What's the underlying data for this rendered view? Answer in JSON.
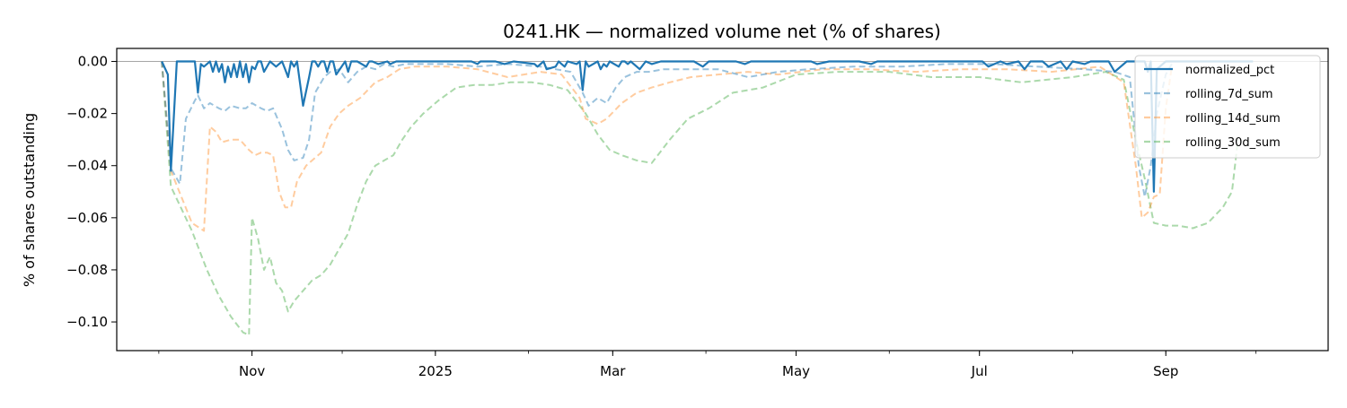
{
  "chart_data": {
    "type": "line",
    "title": "0241.HK — normalized volume net (% of shares)",
    "xlabel": "",
    "ylabel": "% of shares outstanding",
    "ylim": [
      -0.111,
      0.005
    ],
    "xlim": [
      "2024-09-17",
      "2025-10-25"
    ],
    "yticks": [
      0.0,
      -0.02,
      -0.04,
      -0.06,
      -0.08,
      -0.1
    ],
    "ytick_labels": [
      "0.00",
      "−0.02",
      "−0.04",
      "−0.06",
      "−0.08",
      "−0.10"
    ],
    "xticks": [
      "2024-11-01",
      "2025-01-01",
      "2025-03-01",
      "2025-05-01",
      "2025-07-01",
      "2025-09-01"
    ],
    "xtick_labels": [
      "Nov",
      "2025",
      "Mar",
      "May",
      "Jul",
      "Sep"
    ],
    "zero_line": true,
    "grid": false,
    "legend_position": "top-right",
    "series": [
      {
        "name": "normalized_pct",
        "color": "#1f77b4",
        "style": "solid",
        "opacity": 1.0,
        "x": [
          "2024-10-02",
          "2024-10-04",
          "2024-10-05",
          "2024-10-07",
          "2024-10-09",
          "2024-10-12",
          "2024-10-13",
          "2024-10-14",
          "2024-10-15",
          "2024-10-16",
          "2024-10-17",
          "2024-10-18",
          "2024-10-19",
          "2024-10-20",
          "2024-10-21",
          "2024-10-22",
          "2024-10-23",
          "2024-10-24",
          "2024-10-25",
          "2024-10-26",
          "2024-10-27",
          "2024-10-28",
          "2024-10-29",
          "2024-10-30",
          "2024-10-31",
          "2024-11-01",
          "2024-11-02",
          "2024-11-03",
          "2024-11-04",
          "2024-11-05",
          "2024-11-07",
          "2024-11-09",
          "2024-11-11",
          "2024-11-12",
          "2024-11-13",
          "2024-11-14",
          "2024-11-15",
          "2024-11-16",
          "2024-11-18",
          "2024-11-20",
          "2024-11-21",
          "2024-11-22",
          "2024-11-23",
          "2024-11-24",
          "2024-11-25",
          "2024-11-26",
          "2024-11-27",
          "2024-11-28",
          "2024-11-29",
          "2024-12-02",
          "2024-12-03",
          "2024-12-04",
          "2024-12-05",
          "2024-12-06",
          "2024-12-09",
          "2024-12-10",
          "2024-12-11",
          "2024-12-13",
          "2024-12-16",
          "2024-12-17",
          "2024-12-19",
          "2024-12-20",
          "2024-12-23",
          "2025-01-02",
          "2025-01-03",
          "2025-01-06",
          "2025-01-07",
          "2025-01-10",
          "2025-01-13",
          "2025-01-15",
          "2025-01-16",
          "2025-01-20",
          "2025-01-21",
          "2025-01-24",
          "2025-01-27",
          "2025-02-03",
          "2025-02-04",
          "2025-02-06",
          "2025-02-07",
          "2025-02-10",
          "2025-02-11",
          "2025-02-12",
          "2025-02-13",
          "2025-02-14",
          "2025-02-17",
          "2025-02-18",
          "2025-02-19",
          "2025-02-20",
          "2025-02-21",
          "2025-02-24",
          "2025-02-25",
          "2025-02-26",
          "2025-02-27",
          "2025-02-28",
          "2025-03-03",
          "2025-03-04",
          "2025-03-05",
          "2025-03-06",
          "2025-03-07",
          "2025-03-10",
          "2025-03-12",
          "2025-03-14",
          "2025-03-17",
          "2025-03-19",
          "2025-03-21",
          "2025-03-24",
          "2025-03-26",
          "2025-03-28",
          "2025-03-31",
          "2025-04-02",
          "2025-04-04",
          "2025-04-07",
          "2025-04-09",
          "2025-04-11",
          "2025-04-14",
          "2025-04-16",
          "2025-04-18",
          "2025-04-22",
          "2025-04-24",
          "2025-04-28",
          "2025-04-30",
          "2025-05-02",
          "2025-05-06",
          "2025-05-08",
          "2025-05-12",
          "2025-05-14",
          "2025-05-16",
          "2025-05-20",
          "2025-05-22",
          "2025-05-26",
          "2025-05-28",
          "2025-05-30",
          "2025-06-03",
          "2025-06-05",
          "2025-06-09",
          "2025-06-11",
          "2025-06-13",
          "2025-06-17",
          "2025-06-19",
          "2025-06-23",
          "2025-06-25",
          "2025-06-27",
          "2025-07-02",
          "2025-07-04",
          "2025-07-08",
          "2025-07-10",
          "2025-07-14",
          "2025-07-16",
          "2025-07-18",
          "2025-07-22",
          "2025-07-24",
          "2025-07-28",
          "2025-07-30",
          "2025-08-01",
          "2025-08-05",
          "2025-08-07",
          "2025-08-11",
          "2025-08-13",
          "2025-08-15",
          "2025-08-19",
          "2025-08-21",
          "2025-08-22",
          "2025-08-25",
          "2025-08-26",
          "2025-08-27",
          "2025-08-28",
          "2025-08-29",
          "2025-09-01",
          "2025-09-02",
          "2025-09-03",
          "2025-09-04",
          "2025-09-05",
          "2025-09-08",
          "2025-09-10",
          "2025-09-12",
          "2025-09-16",
          "2025-09-18",
          "2025-09-22",
          "2025-09-24",
          "2025-09-26",
          "2025-09-30"
        ],
        "values": [
          0.0,
          -0.005,
          -0.042,
          -0.0,
          -0.0,
          -0.0,
          -0.0,
          -0.012,
          -0.001,
          -0.002,
          -0.001,
          -0.0,
          -0.004,
          -0.0,
          -0.004,
          -0.001,
          -0.008,
          -0.002,
          -0.006,
          -0.001,
          -0.006,
          -0.0,
          -0.006,
          -0.001,
          -0.008,
          -0.002,
          -0.003,
          -0.0,
          -0.0,
          -0.004,
          -0.0,
          -0.002,
          -0.0,
          -0.003,
          -0.006,
          -0.0,
          -0.002,
          -0.0,
          -0.017,
          -0.006,
          -0.0,
          -0.0,
          -0.002,
          -0.0,
          -0.0,
          -0.004,
          -0.0,
          -0.0,
          -0.005,
          -0.0,
          -0.004,
          -0.0,
          -0.0,
          -0.0,
          -0.002,
          -0.0,
          -0.0,
          -0.001,
          -0.0,
          -0.001,
          -0.0,
          -0.0,
          -0.0,
          -0.0,
          -0.0,
          -0.0,
          -0.0,
          -0.0,
          -0.0,
          -0.001,
          -0.0,
          -0.0,
          -0.0,
          -0.001,
          -0.0,
          -0.001,
          -0.002,
          -0.0,
          -0.003,
          -0.002,
          -0.0,
          -0.001,
          -0.002,
          -0.0,
          -0.001,
          -0.0,
          -0.011,
          -0.0,
          -0.002,
          -0.0,
          -0.003,
          -0.001,
          -0.002,
          -0.0,
          -0.002,
          -0.0,
          -0.0,
          -0.001,
          -0.0,
          -0.003,
          -0.0,
          -0.001,
          -0.0,
          -0.0,
          -0.0,
          -0.0,
          -0.0,
          -0.0,
          -0.002,
          -0.0,
          -0.0,
          -0.0,
          -0.0,
          -0.0,
          -0.001,
          -0.0,
          -0.0,
          -0.0,
          -0.0,
          -0.0,
          -0.0,
          -0.0,
          -0.0,
          -0.001,
          -0.0,
          -0.0,
          -0.0,
          -0.0,
          -0.0,
          -0.001,
          -0.0,
          -0.0,
          -0.0,
          -0.0,
          -0.0,
          -0.0,
          -0.0,
          -0.0,
          -0.0,
          -0.0,
          -0.0,
          -0.0,
          -0.0,
          -0.002,
          -0.0,
          -0.001,
          -0.0,
          -0.003,
          -0.0,
          -0.0,
          -0.002,
          -0.0,
          -0.003,
          -0.0,
          -0.001,
          -0.0,
          -0.0,
          -0.0,
          -0.004,
          -0.0,
          -0.0,
          -0.0,
          -0.0,
          -0.004,
          -0.0,
          -0.05,
          -0.003,
          -0.0,
          -0.0,
          -0.0,
          -0.0,
          -0.0,
          -0.0,
          -0.0,
          -0.0,
          -0.0,
          -0.0,
          -0.0,
          -0.0,
          -0.0,
          -0.0
        ]
      },
      {
        "name": "rolling_7d_sum",
        "color": "#1f77b4",
        "style": "dashed",
        "opacity": 0.45,
        "x": [
          "2024-10-02",
          "2024-10-05",
          "2024-10-08",
          "2024-10-10",
          "2024-10-13",
          "2024-10-14",
          "2024-10-16",
          "2024-10-18",
          "2024-10-21",
          "2024-10-23",
          "2024-10-25",
          "2024-10-28",
          "2024-10-30",
          "2024-11-01",
          "2024-11-04",
          "2024-11-06",
          "2024-11-08",
          "2024-11-11",
          "2024-11-13",
          "2024-11-15",
          "2024-11-18",
          "2024-11-20",
          "2024-11-22",
          "2024-11-25",
          "2024-11-27",
          "2024-11-30",
          "2024-12-03",
          "2024-12-06",
          "2024-12-09",
          "2024-12-12",
          "2024-12-15",
          "2024-12-18",
          "2024-12-22",
          "2024-12-28",
          "2025-01-05",
          "2025-01-15",
          "2025-01-25",
          "2025-02-05",
          "2025-02-10",
          "2025-02-15",
          "2025-02-19",
          "2025-02-21",
          "2025-02-24",
          "2025-02-27",
          "2025-03-02",
          "2025-03-05",
          "2025-03-09",
          "2025-03-13",
          "2025-03-18",
          "2025-03-25",
          "2025-04-05",
          "2025-04-15",
          "2025-04-25",
          "2025-05-05",
          "2025-05-20",
          "2025-06-05",
          "2025-06-20",
          "2025-07-05",
          "2025-07-20",
          "2025-08-05",
          "2025-08-15",
          "2025-08-20",
          "2025-08-23",
          "2025-08-25",
          "2025-08-27",
          "2025-08-29",
          "2025-09-01",
          "2025-09-03"
        ],
        "values": [
          0.0,
          -0.041,
          -0.047,
          -0.022,
          -0.015,
          -0.013,
          -0.018,
          -0.016,
          -0.018,
          -0.019,
          -0.017,
          -0.018,
          -0.018,
          -0.016,
          -0.018,
          -0.019,
          -0.018,
          -0.026,
          -0.034,
          -0.038,
          -0.037,
          -0.03,
          -0.012,
          -0.006,
          -0.004,
          -0.003,
          -0.008,
          -0.004,
          -0.002,
          -0.003,
          -0.001,
          -0.002,
          -0.001,
          -0.001,
          -0.001,
          -0.002,
          -0.001,
          -0.002,
          -0.003,
          -0.004,
          -0.012,
          -0.017,
          -0.014,
          -0.016,
          -0.01,
          -0.006,
          -0.004,
          -0.004,
          -0.003,
          -0.003,
          -0.003,
          -0.006,
          -0.004,
          -0.003,
          -0.002,
          -0.002,
          -0.001,
          -0.001,
          -0.002,
          -0.003,
          -0.004,
          -0.006,
          -0.04,
          -0.052,
          -0.04,
          -0.02,
          -0.005,
          -0.001
        ]
      },
      {
        "name": "rolling_14d_sum",
        "color": "#ff7f0e",
        "style": "dashed",
        "opacity": 0.4,
        "x": [
          "2024-10-02",
          "2024-10-05",
          "2024-10-12",
          "2024-10-16",
          "2024-10-18",
          "2024-10-20",
          "2024-10-22",
          "2024-10-25",
          "2024-10-28",
          "2024-10-31",
          "2024-11-02",
          "2024-11-04",
          "2024-11-06",
          "2024-11-08",
          "2024-11-10",
          "2024-11-12",
          "2024-11-14",
          "2024-11-16",
          "2024-11-19",
          "2024-11-21",
          "2024-11-24",
          "2024-11-27",
          "2024-11-30",
          "2024-12-03",
          "2024-12-07",
          "2024-12-12",
          "2024-12-16",
          "2024-12-20",
          "2024-12-25",
          "2025-01-05",
          "2025-01-15",
          "2025-01-25",
          "2025-02-05",
          "2025-02-12",
          "2025-02-18",
          "2025-02-20",
          "2025-02-24",
          "2025-02-27",
          "2025-03-04",
          "2025-03-09",
          "2025-03-14",
          "2025-03-20",
          "2025-03-27",
          "2025-04-05",
          "2025-04-15",
          "2025-04-25",
          "2025-05-10",
          "2025-05-25",
          "2025-06-10",
          "2025-06-25",
          "2025-07-10",
          "2025-07-25",
          "2025-08-10",
          "2025-08-18",
          "2025-08-22",
          "2025-08-24",
          "2025-08-26",
          "2025-08-28",
          "2025-08-30",
          "2025-09-01",
          "2025-09-03"
        ],
        "values": [
          0.0,
          -0.042,
          -0.062,
          -0.065,
          -0.025,
          -0.027,
          -0.031,
          -0.03,
          -0.03,
          -0.034,
          -0.036,
          -0.035,
          -0.035,
          -0.036,
          -0.05,
          -0.056,
          -0.056,
          -0.046,
          -0.04,
          -0.038,
          -0.035,
          -0.025,
          -0.02,
          -0.017,
          -0.014,
          -0.008,
          -0.006,
          -0.003,
          -0.002,
          -0.002,
          -0.003,
          -0.006,
          -0.004,
          -0.005,
          -0.014,
          -0.022,
          -0.024,
          -0.022,
          -0.016,
          -0.012,
          -0.01,
          -0.008,
          -0.006,
          -0.005,
          -0.004,
          -0.005,
          -0.003,
          -0.003,
          -0.004,
          -0.003,
          -0.003,
          -0.004,
          -0.002,
          -0.008,
          -0.04,
          -0.06,
          -0.058,
          -0.052,
          -0.051,
          -0.018,
          -0.002
        ]
      },
      {
        "name": "rolling_30d_sum",
        "color": "#2ca02c",
        "style": "dashed",
        "opacity": 0.4,
        "x": [
          "2024-10-02",
          "2024-10-05",
          "2024-10-12",
          "2024-10-17",
          "2024-10-21",
          "2024-10-25",
          "2024-10-29",
          "2024-10-31",
          "2024-11-01",
          "2024-11-03",
          "2024-11-05",
          "2024-11-07",
          "2024-11-09",
          "2024-11-11",
          "2024-11-13",
          "2024-11-15",
          "2024-11-18",
          "2024-11-21",
          "2024-11-24",
          "2024-11-27",
          "2024-11-30",
          "2024-12-03",
          "2024-12-06",
          "2024-12-09",
          "2024-12-12",
          "2024-12-15",
          "2024-12-18",
          "2024-12-21",
          "2024-12-24",
          "2024-12-28",
          "2025-01-02",
          "2025-01-08",
          "2025-01-14",
          "2025-01-20",
          "2025-01-26",
          "2025-02-02",
          "2025-02-08",
          "2025-02-14",
          "2025-02-20",
          "2025-02-24",
          "2025-02-28",
          "2025-03-04",
          "2025-03-09",
          "2025-03-14",
          "2025-03-20",
          "2025-03-26",
          "2025-04-02",
          "2025-04-10",
          "2025-04-20",
          "2025-05-01",
          "2025-05-15",
          "2025-06-01",
          "2025-06-15",
          "2025-07-01",
          "2025-07-15",
          "2025-08-01",
          "2025-08-12",
          "2025-08-18",
          "2025-08-22",
          "2025-08-25",
          "2025-08-28",
          "2025-09-01",
          "2025-09-05",
          "2025-09-10",
          "2025-09-15",
          "2025-09-20",
          "2025-09-23",
          "2025-09-25"
        ],
        "values": [
          0.0,
          -0.048,
          -0.065,
          -0.08,
          -0.09,
          -0.098,
          -0.104,
          -0.105,
          -0.06,
          -0.068,
          -0.08,
          -0.075,
          -0.085,
          -0.088,
          -0.096,
          -0.092,
          -0.088,
          -0.084,
          -0.082,
          -0.078,
          -0.072,
          -0.066,
          -0.055,
          -0.046,
          -0.04,
          -0.038,
          -0.036,
          -0.03,
          -0.025,
          -0.02,
          -0.015,
          -0.01,
          -0.009,
          -0.009,
          -0.008,
          -0.008,
          -0.009,
          -0.011,
          -0.02,
          -0.028,
          -0.034,
          -0.036,
          -0.038,
          -0.039,
          -0.03,
          -0.022,
          -0.018,
          -0.012,
          -0.01,
          -0.005,
          -0.004,
          -0.004,
          -0.006,
          -0.006,
          -0.008,
          -0.006,
          -0.004,
          -0.007,
          -0.03,
          -0.045,
          -0.062,
          -0.063,
          -0.063,
          -0.064,
          -0.062,
          -0.056,
          -0.05,
          -0.03
        ]
      }
    ]
  }
}
